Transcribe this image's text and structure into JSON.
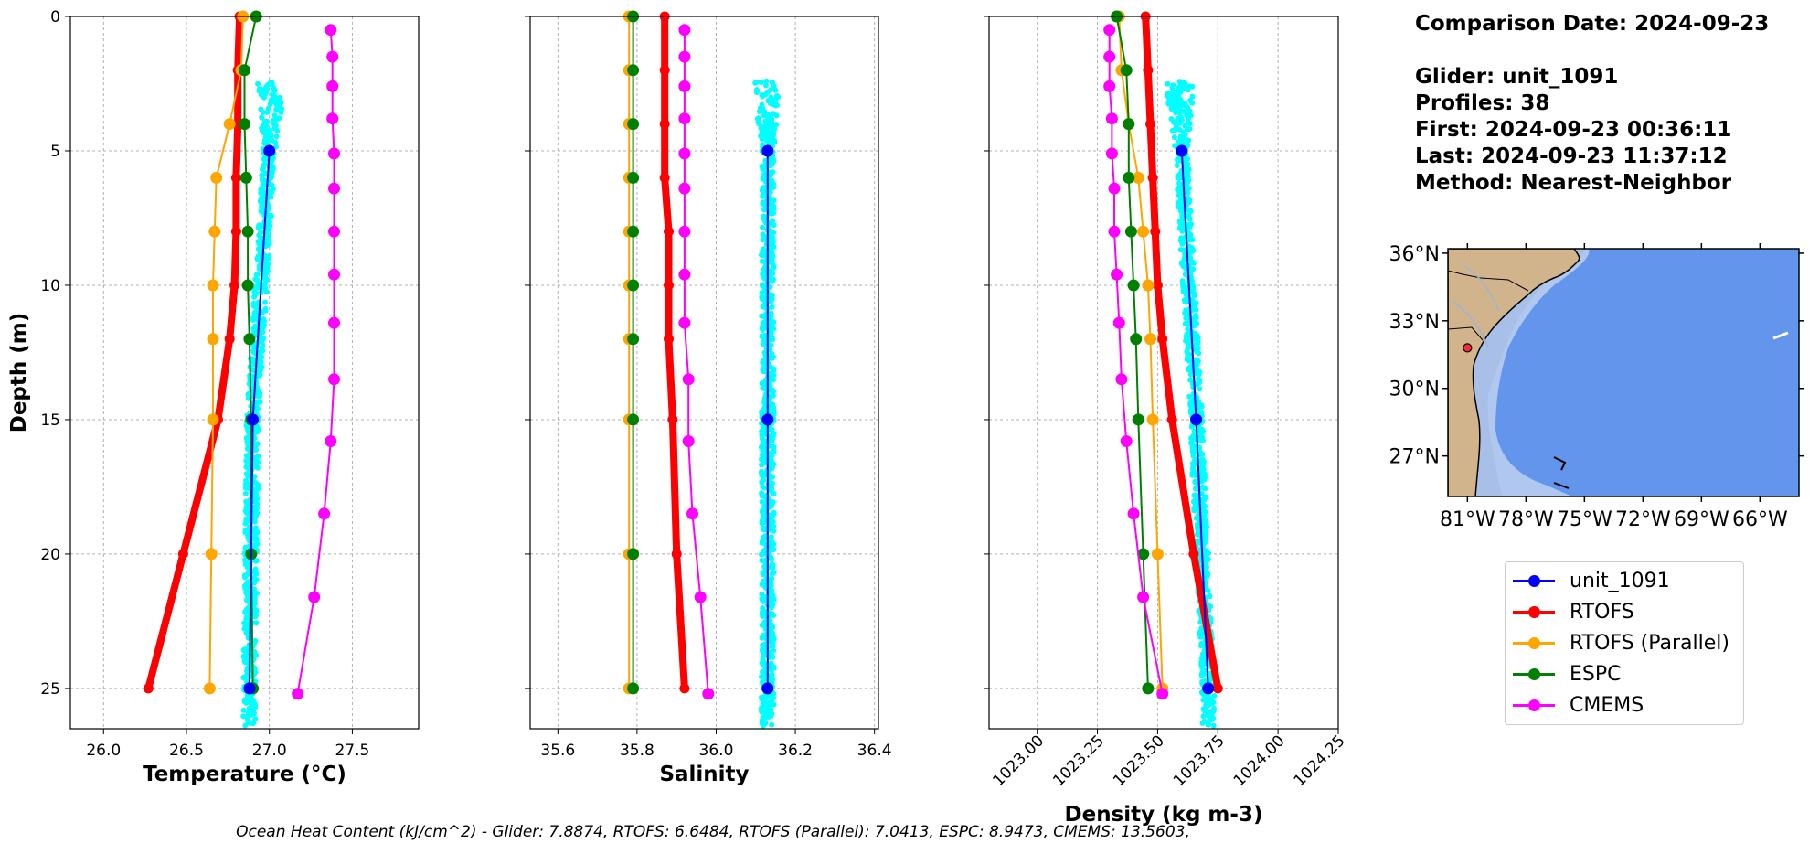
{
  "chart_data": [
    {
      "type": "line",
      "xlabel": "Temperature (°C)",
      "ylabel": "Depth (m)",
      "xlim": [
        25.8,
        27.9
      ],
      "ylim": [
        26.5,
        0
      ],
      "xticks": [
        "26.0",
        "26.5",
        "27.0",
        "27.5"
      ],
      "xtick_values": [
        26.0,
        26.5,
        27.0,
        27.5
      ],
      "yticks": [
        "0",
        "5",
        "10",
        "15",
        "20",
        "25"
      ],
      "ytick_values": [
        0,
        5,
        10,
        15,
        20,
        25
      ],
      "grid": true,
      "series": [
        {
          "name": "RTOFS",
          "depth": [
            0,
            2,
            4,
            6,
            8,
            10,
            12,
            15,
            20,
            25
          ],
          "values": [
            26.82,
            26.81,
            26.81,
            26.8,
            26.8,
            26.79,
            26.76,
            26.69,
            26.48,
            26.27
          ]
        },
        {
          "name": "RTOFS (Parallel)",
          "depth": [
            0,
            2,
            4,
            6,
            8,
            10,
            12,
            15,
            20,
            25
          ],
          "values": [
            26.84,
            26.83,
            26.76,
            26.68,
            26.67,
            26.66,
            26.66,
            26.66,
            26.65,
            26.64
          ]
        },
        {
          "name": "ESPC",
          "depth": [
            0,
            2,
            4,
            6,
            8,
            10,
            12,
            15,
            20,
            25
          ],
          "values": [
            26.92,
            26.85,
            26.85,
            26.86,
            26.87,
            26.87,
            26.88,
            26.89,
            26.89,
            26.9
          ]
        },
        {
          "name": "CMEMS",
          "depth": [
            0.5,
            1.5,
            2.6,
            3.8,
            5.1,
            6.4,
            8.0,
            9.6,
            11.4,
            13.5,
            15.8,
            18.5,
            21.6,
            25.2
          ],
          "values": [
            27.37,
            27.38,
            27.38,
            27.38,
            27.39,
            27.39,
            27.39,
            27.39,
            27.39,
            27.39,
            27.37,
            27.33,
            27.27,
            27.17
          ]
        },
        {
          "name": "unit_1091",
          "depth": [
            5,
            15,
            25
          ],
          "values": [
            27.0,
            26.9,
            26.88
          ]
        }
      ]
    },
    {
      "type": "line",
      "xlabel": "Salinity",
      "xlim": [
        35.53,
        36.41
      ],
      "ylim": [
        26.5,
        0
      ],
      "xticks": [
        "35.6",
        "35.8",
        "36.0",
        "36.2",
        "36.4"
      ],
      "xtick_values": [
        35.6,
        35.8,
        36.0,
        36.2,
        36.4
      ],
      "grid": true,
      "series": [
        {
          "name": "RTOFS",
          "depth": [
            0,
            2,
            4,
            6,
            8,
            10,
            12,
            15,
            20,
            25
          ],
          "values": [
            35.87,
            35.87,
            35.87,
            35.87,
            35.88,
            35.88,
            35.88,
            35.89,
            35.9,
            35.92
          ]
        },
        {
          "name": "RTOFS (Parallel)",
          "depth": [
            0,
            2,
            4,
            6,
            8,
            10,
            12,
            15,
            20,
            25
          ],
          "values": [
            35.78,
            35.78,
            35.78,
            35.78,
            35.78,
            35.78,
            35.78,
            35.78,
            35.78,
            35.78
          ]
        },
        {
          "name": "ESPC",
          "depth": [
            0,
            2,
            4,
            6,
            8,
            10,
            12,
            15,
            20,
            25
          ],
          "values": [
            35.79,
            35.79,
            35.79,
            35.79,
            35.79,
            35.79,
            35.79,
            35.79,
            35.79,
            35.79
          ]
        },
        {
          "name": "CMEMS",
          "depth": [
            0.5,
            1.5,
            2.6,
            3.8,
            5.1,
            6.4,
            8.0,
            9.6,
            11.4,
            13.5,
            15.8,
            18.5,
            21.6,
            25.2
          ],
          "values": [
            35.92,
            35.92,
            35.92,
            35.92,
            35.92,
            35.92,
            35.92,
            35.92,
            35.92,
            35.93,
            35.93,
            35.94,
            35.96,
            35.98
          ]
        },
        {
          "name": "unit_1091",
          "depth": [
            5,
            15,
            25
          ],
          "values": [
            36.13,
            36.13,
            36.13
          ]
        }
      ]
    },
    {
      "type": "line",
      "xlabel": "Density (kg m-3)",
      "xlim": [
        1022.8,
        1024.25
      ],
      "ylim": [
        26.5,
        0
      ],
      "xticks": [
        "1023.00",
        "1023.25",
        "1023.50",
        "1023.75",
        "1024.00",
        "1024.25"
      ],
      "xtick_values": [
        1023.0,
        1023.25,
        1023.5,
        1023.75,
        1024.0,
        1024.25
      ],
      "grid": true,
      "series": [
        {
          "name": "RTOFS",
          "depth": [
            0,
            2,
            4,
            6,
            8,
            10,
            12,
            15,
            20,
            25
          ],
          "values": [
            1023.45,
            1023.46,
            1023.47,
            1023.48,
            1023.49,
            1023.5,
            1023.52,
            1023.56,
            1023.65,
            1023.75
          ]
        },
        {
          "name": "RTOFS (Parallel)",
          "depth": [
            0,
            2,
            4,
            6,
            8,
            10,
            12,
            15,
            20,
            25
          ],
          "values": [
            1023.34,
            1023.35,
            1023.38,
            1023.42,
            1023.44,
            1023.46,
            1023.47,
            1023.48,
            1023.5,
            1023.52
          ]
        },
        {
          "name": "ESPC",
          "depth": [
            0,
            2,
            4,
            6,
            8,
            10,
            12,
            15,
            20,
            25
          ],
          "values": [
            1023.33,
            1023.37,
            1023.38,
            1023.38,
            1023.39,
            1023.4,
            1023.41,
            1023.42,
            1023.44,
            1023.46
          ]
        },
        {
          "name": "CMEMS",
          "depth": [
            0.5,
            1.5,
            2.6,
            3.8,
            5.1,
            6.4,
            8.0,
            9.6,
            11.4,
            13.5,
            15.8,
            18.5,
            21.6,
            25.2
          ],
          "values": [
            1023.3,
            1023.3,
            1023.3,
            1023.31,
            1023.31,
            1023.32,
            1023.32,
            1023.33,
            1023.34,
            1023.35,
            1023.37,
            1023.4,
            1023.44,
            1023.52
          ]
        },
        {
          "name": "unit_1091",
          "depth": [
            5,
            15,
            25
          ],
          "values": [
            1023.6,
            1023.66,
            1023.71
          ]
        }
      ]
    },
    {
      "type": "map",
      "lat_ticks": [
        "36°N",
        "33°N",
        "30°N",
        "27°N"
      ],
      "lat_values": [
        36,
        33,
        30,
        27
      ],
      "lon_ticks": [
        "81°W",
        "78°W",
        "75°W",
        "72°W",
        "69°W",
        "66°W"
      ],
      "lon_values": [
        -81,
        -78,
        -75,
        -72,
        -69,
        -66
      ],
      "extent": {
        "lon_min": -82,
        "lon_max": -64,
        "lat_min": 25.2,
        "lat_max": 36.2
      },
      "glider_position": {
        "lon": -81.0,
        "lat": 31.8
      }
    }
  ],
  "info": {
    "comparison_date": "Comparison Date: 2024-09-23",
    "glider": "Glider: unit_1091",
    "profiles": "Profiles: 38",
    "first": "First: 2024-09-23 00:36:11",
    "last": "Last: 2024-09-23 11:37:12",
    "method": "Method: Nearest-Neighbor"
  },
  "legend": [
    {
      "label": "unit_1091",
      "color": "#0000ff"
    },
    {
      "label": "RTOFS",
      "color": "#ff0000"
    },
    {
      "label": "RTOFS (Parallel)",
      "color": "#ffa500"
    },
    {
      "label": "ESPC",
      "color": "#008000"
    },
    {
      "label": "CMEMS",
      "color": "#ff00ff"
    }
  ],
  "colors": {
    "scatter": "#00ffff",
    "map_ocean": "#6495ed",
    "map_shelf": "#b0c8f0",
    "map_land": "#d2b48c"
  },
  "footer": "Ocean Heat Content (kJ/cm^2) - Glider: 7.8874,  RTOFS: 6.6484,  RTOFS (Parallel): 7.0413,  ESPC: 8.9473,  CMEMS: 13.5603,"
}
